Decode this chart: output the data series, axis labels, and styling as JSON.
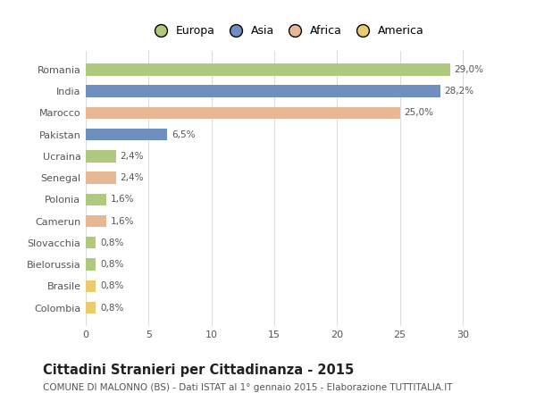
{
  "countries": [
    "Romania",
    "India",
    "Marocco",
    "Pakistan",
    "Ucraina",
    "Senegal",
    "Polonia",
    "Camerun",
    "Slovacchia",
    "Bielorussia",
    "Brasile",
    "Colombia"
  ],
  "values": [
    29.0,
    28.2,
    25.0,
    6.5,
    2.4,
    2.4,
    1.6,
    1.6,
    0.8,
    0.8,
    0.8,
    0.8
  ],
  "labels": [
    "29,0%",
    "28,2%",
    "25,0%",
    "6,5%",
    "2,4%",
    "2,4%",
    "1,6%",
    "1,6%",
    "0,8%",
    "0,8%",
    "0,8%",
    "0,8%"
  ],
  "continents": [
    "Europa",
    "Asia",
    "Africa",
    "Asia",
    "Europa",
    "Africa",
    "Europa",
    "Africa",
    "Europa",
    "Europa",
    "America",
    "America"
  ],
  "colors": {
    "Europa": "#afc97e",
    "Asia": "#6e8fbf",
    "Africa": "#e8b896",
    "America": "#e8cc6e"
  },
  "legend_order": [
    "Europa",
    "Asia",
    "Africa",
    "America"
  ],
  "xlim": [
    0,
    32
  ],
  "xticks": [
    0,
    5,
    10,
    15,
    20,
    25,
    30
  ],
  "title": "Cittadini Stranieri per Cittadinanza - 2015",
  "subtitle": "COMUNE DI MALONNO (BS) - Dati ISTAT al 1° gennaio 2015 - Elaborazione TUTTITALIA.IT",
  "background_color": "#ffffff",
  "plot_bg_color": "#ffffff",
  "grid_color": "#dddddd",
  "title_fontsize": 10.5,
  "subtitle_fontsize": 7.5,
  "label_fontsize": 7.5,
  "tick_fontsize": 8,
  "legend_fontsize": 9,
  "bar_height": 0.55
}
